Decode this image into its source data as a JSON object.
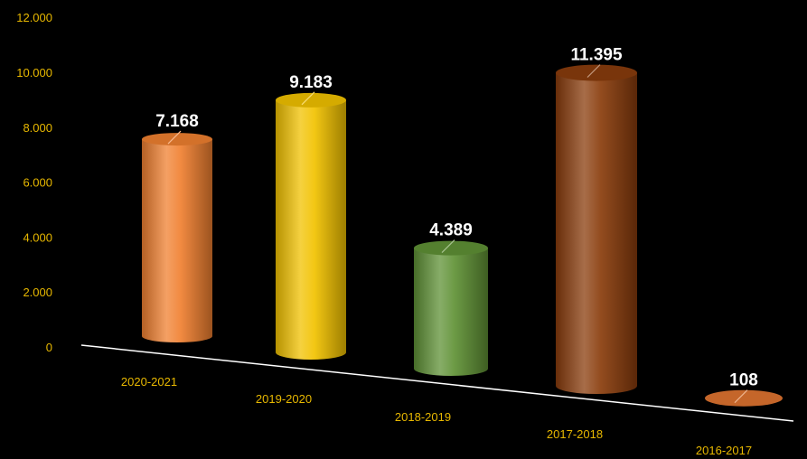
{
  "chart_data": {
    "type": "bar",
    "style": "3d-cylinder",
    "categories": [
      "2020-2021",
      "2019-2020",
      "2018-2019",
      "2017-2018",
      "2016-2017"
    ],
    "values": [
      7168,
      9183,
      4389,
      11395,
      108
    ],
    "data_labels": [
      "7.168",
      "9.183",
      "4.389",
      "11.395",
      "108"
    ],
    "y_ticks": [
      0,
      2000,
      4000,
      6000,
      8000,
      10000,
      12000
    ],
    "y_tick_labels": [
      "0",
      "2.000",
      "4.000",
      "6.000",
      "8.000",
      "10.000",
      "12.000"
    ],
    "ylim": [
      0,
      12000
    ],
    "grid": false,
    "legend": "none",
    "colors": [
      "#f08030",
      "#f2c200",
      "#5f9135",
      "#8a3c0c",
      "#e07430"
    ],
    "background": "#000000",
    "tick_color": "#e8b800",
    "label_color": "#ffffff"
  }
}
